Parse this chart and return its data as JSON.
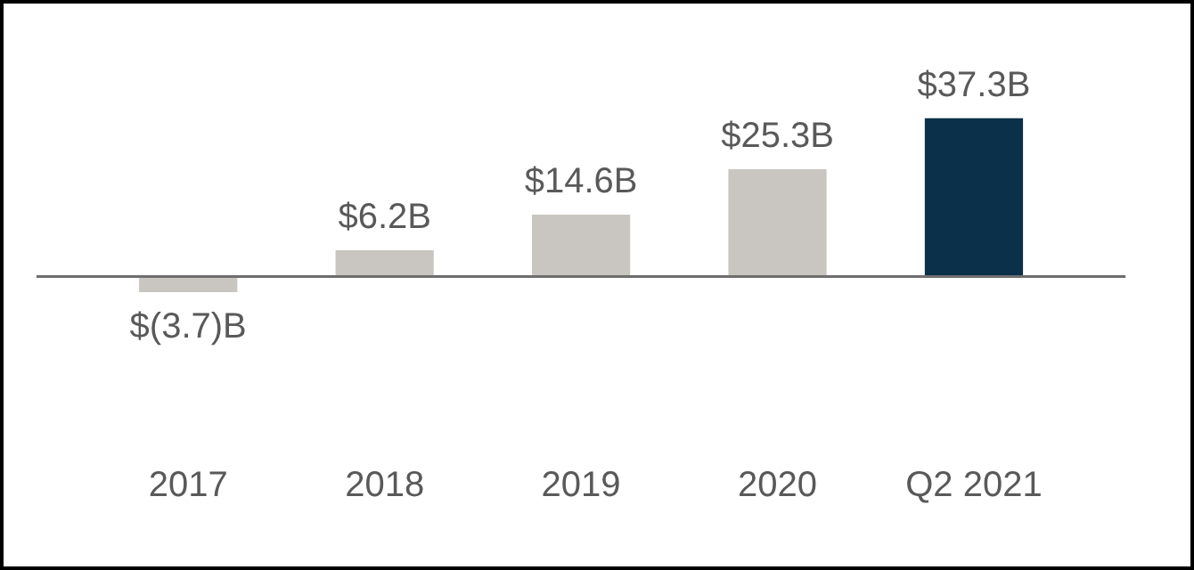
{
  "chart_data": {
    "type": "bar",
    "categories": [
      "2017",
      "2018",
      "2019",
      "2020",
      "Q2 2021"
    ],
    "values": [
      -3.7,
      6.2,
      14.6,
      25.3,
      37.3
    ],
    "colors": [
      "#c9c6c1",
      "#c9c6c1",
      "#c9c6c1",
      "#c9c6c1",
      "#0b3049"
    ],
    "value_labels": [
      "$(3.7)B",
      "$6.2B",
      "$14.6B",
      "$25.3B",
      "$37.3B"
    ],
    "grid": false,
    "legend": false
  }
}
